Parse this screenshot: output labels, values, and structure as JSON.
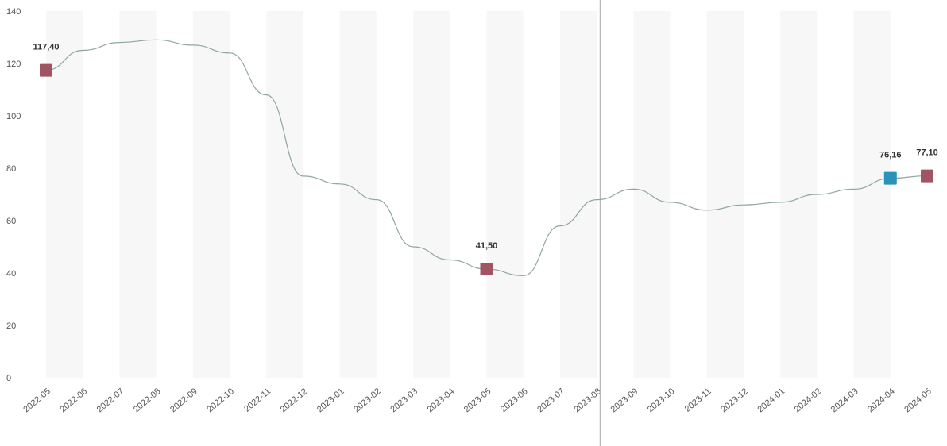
{
  "chart_data": {
    "type": "line",
    "x": [
      "2022-05",
      "2022-06",
      "2022-07",
      "2022-08",
      "2022-09",
      "2022-10",
      "2022-11",
      "2022-12",
      "2023-01",
      "2023-02",
      "2023-03",
      "2023-04",
      "2023-05",
      "2023-06",
      "2023-07",
      "2023-08",
      "2023-09",
      "2023-10",
      "2023-11",
      "2023-12",
      "2024-01",
      "2024-02",
      "2024-03",
      "2024-04",
      "2024-05"
    ],
    "y_ticks": [
      "0",
      "20",
      "40",
      "60",
      "80",
      "100",
      "120",
      "140"
    ],
    "ylim": [
      0,
      140
    ],
    "grid": false,
    "series": [
      {
        "values": [
          117.4,
          125,
          128,
          129,
          127,
          124,
          108,
          77,
          74,
          68,
          50,
          45,
          41.5,
          39,
          58,
          68,
          72,
          67,
          64,
          66,
          67,
          70,
          72,
          76.16,
          77.1
        ]
      }
    ],
    "highlight_markers": [
      {
        "x": "2022-05",
        "value": 117.4,
        "label": "117,40",
        "color": "#a15563"
      },
      {
        "x": "2023-05",
        "value": 41.5,
        "label": "41,50",
        "color": "#a15563"
      },
      {
        "x": "2024-04",
        "value": 76.16,
        "label": "76,16",
        "color": "#2b93b8"
      },
      {
        "x": "2024-05",
        "value": 77.1,
        "label": "77,10",
        "color": "#a15563"
      }
    ],
    "vertical_marker_x": "2023-08",
    "colors": {
      "line": "#8fa6a3",
      "vline": "#b8b8b8",
      "band": "#f7f7f7"
    }
  }
}
